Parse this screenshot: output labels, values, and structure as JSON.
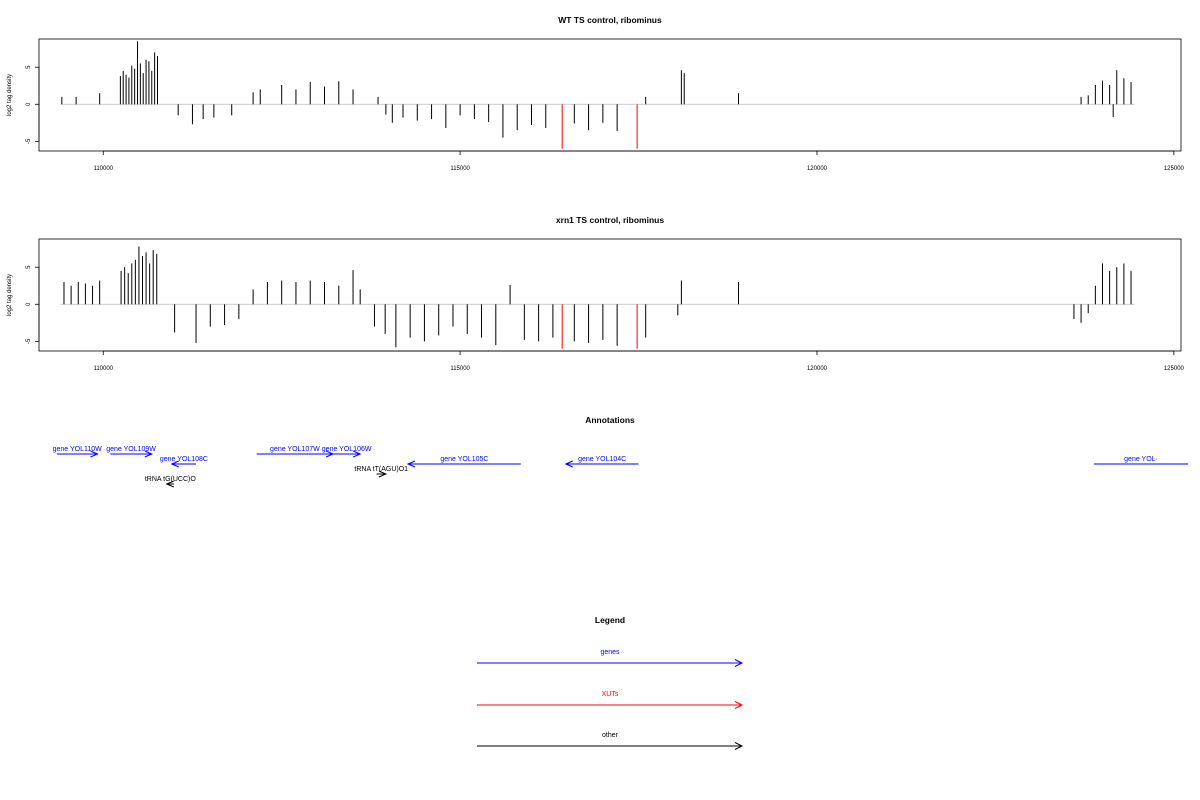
{
  "chart_data": [
    {
      "type": "bar",
      "title": "WT TS control, ribominus",
      "ylabel": "log2 tag density",
      "xlim": [
        109100,
        125100
      ],
      "ylim": [
        -6.3,
        8.8
      ],
      "x_ticks": [
        110000,
        115000,
        120000,
        125000
      ],
      "x_tick_labels": [
        "110000",
        "115000",
        "120000",
        "125000"
      ],
      "y_ticks": [
        -5,
        0,
        5
      ],
      "y_tick_labels": [
        "-5",
        "0",
        "5"
      ],
      "baseline_color": "#bbbbbb",
      "colors": {
        "default": "#000000",
        "highlight": "#ff0000"
      },
      "bars": [
        {
          "x": 109420,
          "y": 1.0
        },
        {
          "x": 109620,
          "y": 1.0
        },
        {
          "x": 109950,
          "y": 1.5
        },
        {
          "x": 110240,
          "y": 3.8
        },
        {
          "x": 110280,
          "y": 4.5
        },
        {
          "x": 110320,
          "y": 4.0
        },
        {
          "x": 110360,
          "y": 3.6
        },
        {
          "x": 110400,
          "y": 5.2
        },
        {
          "x": 110440,
          "y": 4.8
        },
        {
          "x": 110480,
          "y": 8.5
        },
        {
          "x": 110520,
          "y": 5.5
        },
        {
          "x": 110560,
          "y": 4.2
        },
        {
          "x": 110600,
          "y": 6.0
        },
        {
          "x": 110640,
          "y": 5.8
        },
        {
          "x": 110680,
          "y": 4.5
        },
        {
          "x": 110720,
          "y": 7.0
        },
        {
          "x": 110760,
          "y": 6.5
        },
        {
          "x": 111050,
          "y": -1.5
        },
        {
          "x": 111250,
          "y": -2.7
        },
        {
          "x": 111400,
          "y": -2.0
        },
        {
          "x": 111550,
          "y": -1.8
        },
        {
          "x": 111800,
          "y": -1.5
        },
        {
          "x": 112100,
          "y": 1.6
        },
        {
          "x": 112200,
          "y": 2.0
        },
        {
          "x": 112500,
          "y": 2.6
        },
        {
          "x": 112700,
          "y": 2.0
        },
        {
          "x": 112900,
          "y": 3.0
        },
        {
          "x": 113100,
          "y": 2.4
        },
        {
          "x": 113300,
          "y": 3.1
        },
        {
          "x": 113500,
          "y": 2.0
        },
        {
          "x": 113850,
          "y": 1.0
        },
        {
          "x": 113960,
          "y": -1.4
        },
        {
          "x": 114050,
          "y": -2.5
        },
        {
          "x": 114200,
          "y": -1.8
        },
        {
          "x": 114400,
          "y": -2.2
        },
        {
          "x": 114600,
          "y": -2.0
        },
        {
          "x": 114800,
          "y": -3.2
        },
        {
          "x": 115000,
          "y": -1.5
        },
        {
          "x": 115200,
          "y": -2.0
        },
        {
          "x": 115400,
          "y": -2.4
        },
        {
          "x": 115600,
          "y": -4.5
        },
        {
          "x": 115800,
          "y": -3.5
        },
        {
          "x": 116000,
          "y": -2.8
        },
        {
          "x": 116200,
          "y": -3.2
        },
        {
          "x": 116430,
          "y": -6.0,
          "c": "highlight"
        },
        {
          "x": 116600,
          "y": -2.6
        },
        {
          "x": 116800,
          "y": -3.5
        },
        {
          "x": 117000,
          "y": -2.5
        },
        {
          "x": 117200,
          "y": -3.6
        },
        {
          "x": 117480,
          "y": -6.0,
          "c": "highlight"
        },
        {
          "x": 117600,
          "y": 1.0
        },
        {
          "x": 118100,
          "y": 4.6
        },
        {
          "x": 118140,
          "y": 4.2
        },
        {
          "x": 118900,
          "y": 1.5
        },
        {
          "x": 123700,
          "y": 1.0
        },
        {
          "x": 123800,
          "y": 1.2
        },
        {
          "x": 123900,
          "y": 2.6
        },
        {
          "x": 124000,
          "y": 3.2
        },
        {
          "x": 124100,
          "y": 2.6
        },
        {
          "x": 124150,
          "y": -1.7
        },
        {
          "x": 124200,
          "y": 4.6
        },
        {
          "x": 124300,
          "y": 3.5
        },
        {
          "x": 124400,
          "y": 3.0
        }
      ]
    },
    {
      "type": "bar",
      "title": "xrn1 TS control, ribominus",
      "ylabel": "log2 tag density",
      "xlim": [
        109100,
        125100
      ],
      "ylim": [
        -6.3,
        8.8
      ],
      "x_ticks": [
        110000,
        115000,
        120000,
        125000
      ],
      "x_tick_labels": [
        "110000",
        "115000",
        "120000",
        "125000"
      ],
      "y_ticks": [
        -5,
        0,
        5
      ],
      "y_tick_labels": [
        "-5",
        "0",
        "5"
      ],
      "baseline_color": "#bbbbbb",
      "colors": {
        "default": "#000000",
        "highlight": "#ff0000"
      },
      "bars": [
        {
          "x": 109450,
          "y": 3.0
        },
        {
          "x": 109550,
          "y": 2.5
        },
        {
          "x": 109650,
          "y": 3.0
        },
        {
          "x": 109750,
          "y": 2.8
        },
        {
          "x": 109850,
          "y": 2.5
        },
        {
          "x": 109950,
          "y": 3.2
        },
        {
          "x": 110250,
          "y": 4.5
        },
        {
          "x": 110300,
          "y": 5.0
        },
        {
          "x": 110350,
          "y": 4.2
        },
        {
          "x": 110400,
          "y": 5.5
        },
        {
          "x": 110450,
          "y": 6.0
        },
        {
          "x": 110500,
          "y": 7.8
        },
        {
          "x": 110550,
          "y": 6.5
        },
        {
          "x": 110600,
          "y": 7.0
        },
        {
          "x": 110650,
          "y": 5.5
        },
        {
          "x": 110700,
          "y": 7.3
        },
        {
          "x": 110750,
          "y": 6.8
        },
        {
          "x": 111000,
          "y": -3.8
        },
        {
          "x": 111300,
          "y": -5.2
        },
        {
          "x": 111500,
          "y": -3.0
        },
        {
          "x": 111700,
          "y": -2.8
        },
        {
          "x": 111900,
          "y": -2.0
        },
        {
          "x": 112100,
          "y": 2.0
        },
        {
          "x": 112300,
          "y": 3.0
        },
        {
          "x": 112500,
          "y": 3.2
        },
        {
          "x": 112700,
          "y": 3.0
        },
        {
          "x": 112900,
          "y": 3.2
        },
        {
          "x": 113100,
          "y": 3.0
        },
        {
          "x": 113300,
          "y": 2.5
        },
        {
          "x": 113500,
          "y": 4.6
        },
        {
          "x": 113600,
          "y": 2.0
        },
        {
          "x": 113800,
          "y": -3.0
        },
        {
          "x": 113950,
          "y": -4.0
        },
        {
          "x": 114100,
          "y": -5.8
        },
        {
          "x": 114300,
          "y": -4.5
        },
        {
          "x": 114500,
          "y": -5.0
        },
        {
          "x": 114700,
          "y": -4.2
        },
        {
          "x": 114900,
          "y": -3.0
        },
        {
          "x": 115100,
          "y": -4.0
        },
        {
          "x": 115300,
          "y": -4.5
        },
        {
          "x": 115500,
          "y": -5.5
        },
        {
          "x": 115700,
          "y": 2.6
        },
        {
          "x": 115900,
          "y": -4.8
        },
        {
          "x": 116100,
          "y": -5.0
        },
        {
          "x": 116300,
          "y": -4.5
        },
        {
          "x": 116430,
          "y": -6.0,
          "c": "highlight"
        },
        {
          "x": 116600,
          "y": -5.0
        },
        {
          "x": 116800,
          "y": -5.2
        },
        {
          "x": 117000,
          "y": -4.8
        },
        {
          "x": 117200,
          "y": -5.6
        },
        {
          "x": 117480,
          "y": -6.0,
          "c": "highlight"
        },
        {
          "x": 117600,
          "y": -4.5
        },
        {
          "x": 118050,
          "y": -1.5
        },
        {
          "x": 118100,
          "y": 3.2
        },
        {
          "x": 118900,
          "y": 3.0
        },
        {
          "x": 123600,
          "y": -2.0
        },
        {
          "x": 123700,
          "y": -2.5
        },
        {
          "x": 123800,
          "y": -1.2
        },
        {
          "x": 123900,
          "y": 2.5
        },
        {
          "x": 124000,
          "y": 5.5
        },
        {
          "x": 124100,
          "y": 4.5
        },
        {
          "x": 124200,
          "y": 5.0
        },
        {
          "x": 124300,
          "y": 5.5
        },
        {
          "x": 124400,
          "y": 4.5
        }
      ]
    }
  ],
  "annotations": {
    "title": "Annotations",
    "features": [
      {
        "label": "gene YOL110W",
        "color": "#0000ff",
        "start": 109350,
        "end": 109920,
        "strand": "+",
        "row": 0
      },
      {
        "label": "gene YOL109W",
        "color": "#0000ff",
        "start": 110100,
        "end": 110680,
        "strand": "+",
        "row": 0
      },
      {
        "label": "gene YOL108C",
        "color": "#0000ff",
        "start": 110960,
        "end": 111300,
        "strand": "-",
        "row": 1
      },
      {
        "label": "gene YOL107W",
        "color": "#0000ff",
        "start": 112150,
        "end": 113220,
        "strand": "+",
        "row": 0
      },
      {
        "label": "gene YOL106W",
        "color": "#0000ff",
        "start": 113220,
        "end": 113600,
        "strand": "+",
        "row": 0
      },
      {
        "label": "gene YOL105C",
        "color": "#0000ff",
        "start": 114270,
        "end": 115850,
        "strand": "-",
        "row": 1
      },
      {
        "label": "gene YOL104C",
        "color": "#0000ff",
        "start": 116480,
        "end": 117500,
        "strand": "-",
        "row": 1
      },
      {
        "label": "gene YOL·",
        "color": "#0000ff",
        "start": 123880,
        "end": 125200,
        "strand": "+",
        "row": 1
      },
      {
        "label": "tRNA tG(UCC)O",
        "color": "#000000",
        "start": 110890,
        "end": 110990,
        "strand": "-",
        "row": 3
      },
      {
        "label": "tRNA tT(AGU)O1",
        "color": "#000000",
        "start": 113830,
        "end": 113960,
        "strand": "+",
        "row": 2
      }
    ]
  },
  "legend": {
    "title": "Legend",
    "items": [
      {
        "label": "genes",
        "color": "#0000ff"
      },
      {
        "label": "XUTs",
        "color": "#ff0000"
      },
      {
        "label": "other",
        "color": "#000000"
      }
    ]
  }
}
